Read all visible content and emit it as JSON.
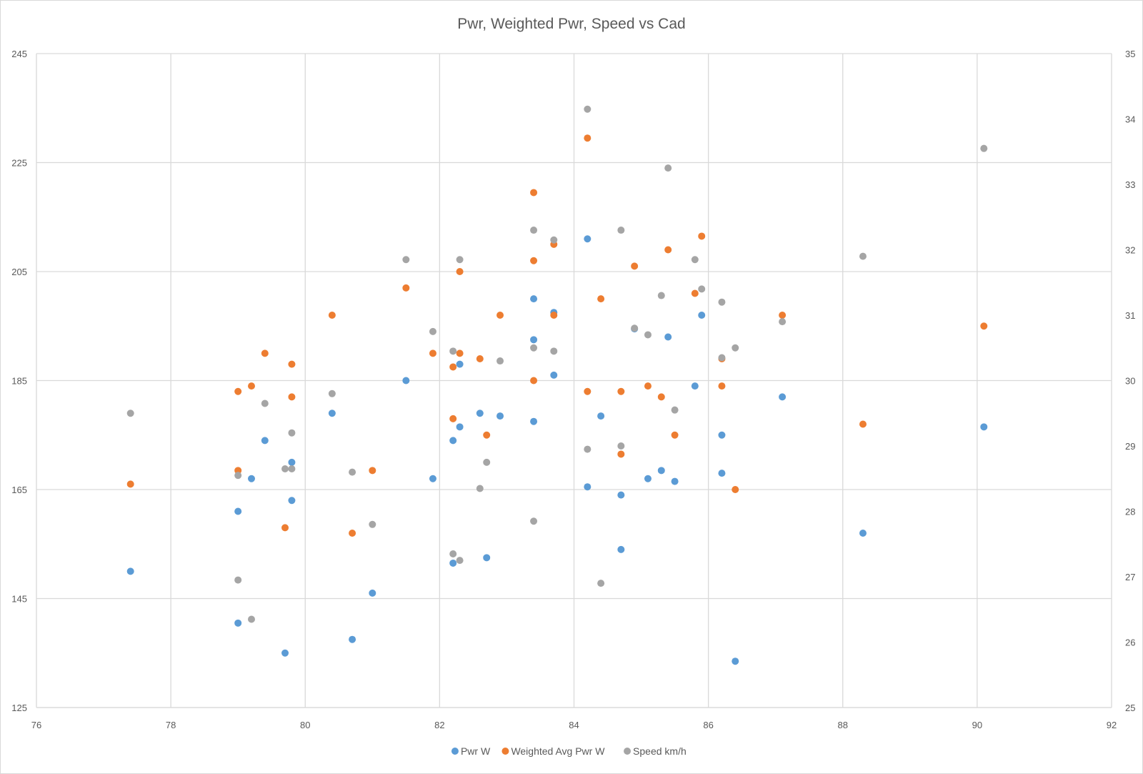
{
  "chart_data": {
    "type": "scatter",
    "title": "Pwr, Weighted Pwr, Speed vs Cad",
    "xlabel": "",
    "ylabel": "",
    "y2label": "",
    "xlim": [
      76,
      92
    ],
    "ylim": [
      125,
      245
    ],
    "y2lim": [
      25,
      35
    ],
    "x_ticks": [
      76,
      78,
      80,
      82,
      84,
      86,
      88,
      90,
      92
    ],
    "y_ticks": [
      125,
      145,
      165,
      185,
      205,
      225,
      245
    ],
    "y2_ticks": [
      25,
      26,
      27,
      28,
      29,
      30,
      31,
      32,
      33,
      34,
      35
    ],
    "grid": true,
    "legend_position": "bottom",
    "series": [
      {
        "name": "Pwr W",
        "axis": "left",
        "color": "#5b9bd5",
        "points": [
          [
            77.4,
            150
          ],
          [
            79.0,
            161
          ],
          [
            79.0,
            140.5
          ],
          [
            79.2,
            167
          ],
          [
            79.4,
            174
          ],
          [
            79.7,
            135
          ],
          [
            79.8,
            170
          ],
          [
            79.8,
            163
          ],
          [
            80.4,
            179
          ],
          [
            80.7,
            137.5
          ],
          [
            81.0,
            146
          ],
          [
            81.5,
            185
          ],
          [
            81.9,
            167
          ],
          [
            82.2,
            174
          ],
          [
            82.2,
            151.5
          ],
          [
            82.3,
            188
          ],
          [
            82.3,
            176.5
          ],
          [
            82.6,
            179
          ],
          [
            82.7,
            152.5
          ],
          [
            82.9,
            178.5
          ],
          [
            83.4,
            200
          ],
          [
            83.4,
            192.5
          ],
          [
            83.4,
            177.5
          ],
          [
            83.7,
            197.5
          ],
          [
            83.7,
            186
          ],
          [
            84.2,
            211
          ],
          [
            84.2,
            165.5
          ],
          [
            84.4,
            178.5
          ],
          [
            84.7,
            164
          ],
          [
            84.7,
            154
          ],
          [
            84.9,
            194.5
          ],
          [
            85.1,
            167
          ],
          [
            85.3,
            168.5
          ],
          [
            85.4,
            193
          ],
          [
            85.5,
            166.5
          ],
          [
            85.8,
            184
          ],
          [
            85.9,
            197
          ],
          [
            86.2,
            175
          ],
          [
            86.2,
            168
          ],
          [
            86.4,
            133.5
          ],
          [
            87.1,
            182
          ],
          [
            88.3,
            157
          ],
          [
            90.1,
            176.5
          ]
        ]
      },
      {
        "name": "Weighted Avg Pwr W",
        "axis": "left",
        "color": "#ed7d31",
        "points": [
          [
            77.4,
            166
          ],
          [
            79.0,
            183
          ],
          [
            79.0,
            168.5
          ],
          [
            79.2,
            184
          ],
          [
            79.4,
            190
          ],
          [
            79.7,
            158
          ],
          [
            79.8,
            188
          ],
          [
            79.8,
            182
          ],
          [
            80.4,
            197
          ],
          [
            80.7,
            157
          ],
          [
            81.0,
            168.5
          ],
          [
            81.5,
            202
          ],
          [
            81.9,
            190
          ],
          [
            82.2,
            187.5
          ],
          [
            82.2,
            178
          ],
          [
            82.3,
            205
          ],
          [
            82.3,
            190
          ],
          [
            82.6,
            189
          ],
          [
            82.7,
            175
          ],
          [
            82.9,
            197
          ],
          [
            83.4,
            219.5
          ],
          [
            83.4,
            207
          ],
          [
            83.4,
            185
          ],
          [
            83.7,
            210
          ],
          [
            83.7,
            197
          ],
          [
            84.2,
            229.5
          ],
          [
            84.2,
            183
          ],
          [
            84.4,
            200
          ],
          [
            84.7,
            183
          ],
          [
            84.7,
            171.5
          ],
          [
            84.9,
            206
          ],
          [
            85.1,
            184
          ],
          [
            85.3,
            182
          ],
          [
            85.4,
            209
          ],
          [
            85.5,
            175
          ],
          [
            85.8,
            201
          ],
          [
            85.9,
            211.5
          ],
          [
            86.2,
            189
          ],
          [
            86.2,
            184
          ],
          [
            86.4,
            165
          ],
          [
            87.1,
            197
          ],
          [
            88.3,
            177
          ],
          [
            90.1,
            195
          ]
        ]
      },
      {
        "name": "Speed km/h",
        "axis": "right",
        "color": "#a5a5a5",
        "points": [
          [
            77.4,
            29.5
          ],
          [
            79.0,
            28.55
          ],
          [
            79.0,
            26.95
          ],
          [
            79.2,
            26.35
          ],
          [
            79.4,
            29.65
          ],
          [
            79.7,
            28.65
          ],
          [
            79.8,
            29.2
          ],
          [
            79.8,
            28.65
          ],
          [
            80.4,
            29.8
          ],
          [
            80.7,
            28.6
          ],
          [
            81.0,
            27.8
          ],
          [
            81.5,
            31.85
          ],
          [
            81.9,
            30.75
          ],
          [
            82.2,
            30.45
          ],
          [
            82.2,
            27.35
          ],
          [
            82.3,
            31.85
          ],
          [
            82.3,
            27.25
          ],
          [
            82.6,
            28.35
          ],
          [
            82.7,
            28.75
          ],
          [
            82.9,
            30.3
          ],
          [
            83.4,
            32.3
          ],
          [
            83.4,
            30.5
          ],
          [
            83.4,
            27.85
          ],
          [
            83.7,
            32.15
          ],
          [
            83.7,
            30.45
          ],
          [
            84.2,
            34.15
          ],
          [
            84.2,
            28.95
          ],
          [
            84.4,
            26.9
          ],
          [
            84.7,
            32.3
          ],
          [
            84.7,
            29
          ],
          [
            84.9,
            30.8
          ],
          [
            85.1,
            30.7
          ],
          [
            85.3,
            31.3
          ],
          [
            85.4,
            33.25
          ],
          [
            85.5,
            29.55
          ],
          [
            85.8,
            31.85
          ],
          [
            85.9,
            31.4
          ],
          [
            86.2,
            31.2
          ],
          [
            86.2,
            30.35
          ],
          [
            86.4,
            30.5
          ],
          [
            87.1,
            30.9
          ],
          [
            88.3,
            31.9
          ],
          [
            90.1,
            33.55
          ]
        ]
      }
    ]
  }
}
